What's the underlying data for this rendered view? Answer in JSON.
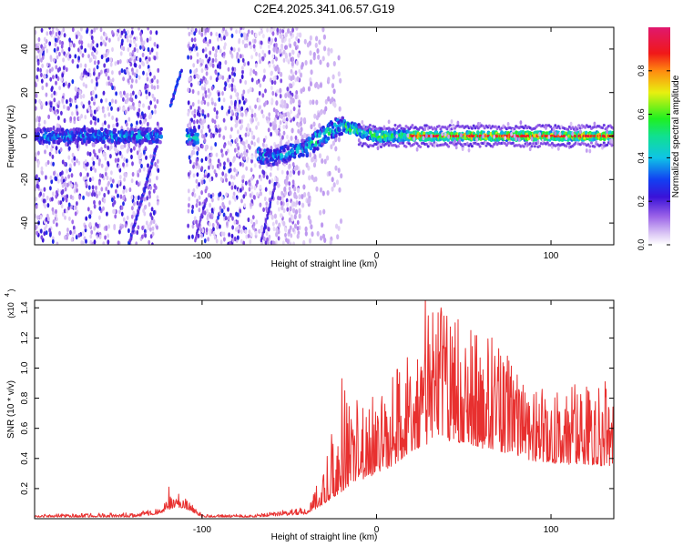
{
  "title": "C2E4.2025.341.06.57.G19",
  "chart_data": [
    {
      "type": "heatmap",
      "xlabel": "Height of straight line (km)",
      "ylabel": "Frequency (Hz)",
      "xlim": [
        -196,
        136
      ],
      "ylim": [
        -50,
        50
      ],
      "xticks": [
        -100,
        0,
        100
      ],
      "xtick_labels": [
        "-100",
        "0",
        "100"
      ],
      "yticks": [
        -40,
        -20,
        0,
        20,
        40
      ],
      "ytick_labels": [
        "-40",
        "-20",
        "0",
        "20",
        "40"
      ],
      "colorbar": {
        "label": "Normalized spectral amplitude",
        "range": [
          0,
          1
        ],
        "ticks": [
          0.0,
          0.2,
          0.4,
          0.6,
          0.8
        ],
        "tick_labels": [
          "0.0",
          "0.2",
          "0.4",
          "0.6",
          "0.8"
        ],
        "colormap": "rainbow (white-lavender-purple-blue-cyan-green-yellow-orange-red-magenta)"
      },
      "features": {
        "noise_region_x": [
          -196,
          -52
        ],
        "gap_x": [
          -125,
          -108
        ],
        "signal_track_points": [
          [
            -196,
            0
          ],
          [
            -150,
            0
          ],
          [
            -130,
            0
          ],
          [
            -108,
            0
          ],
          [
            -60,
            -10
          ],
          [
            -40,
            -5
          ],
          [
            -25,
            3
          ],
          [
            -20,
            5
          ],
          [
            0,
            0
          ],
          [
            136,
            0
          ]
        ],
        "peak_region_x": [
          20,
          136
        ]
      }
    },
    {
      "type": "line",
      "xlabel": "Height of straight line (km)",
      "ylabel": "SNR (10 * v/v)",
      "y_multiplier_label": "(x10",
      "y_multiplier_exponent": "4",
      "xlim": [
        -196,
        136
      ],
      "ylim": [
        0,
        1.45
      ],
      "xticks": [
        -100,
        0,
        100
      ],
      "xtick_labels": [
        "-100",
        "0",
        "100"
      ],
      "yticks": [
        0.2,
        0.4,
        0.6,
        0.8,
        1.0,
        1.2,
        1.4
      ],
      "ytick_labels": [
        "0.2",
        "0.4",
        "0.6",
        "0.8",
        "1.0",
        "1.2",
        "1.4"
      ],
      "series": [
        {
          "color": "#e8302f",
          "envelope": {
            "x": [
              -196,
              -140,
              -125,
              -115,
              -108,
              -100,
              -70,
              -40,
              -30,
              -20,
              -10,
              0,
              10,
              20,
              30,
              40,
              50,
              60,
              70,
              80,
              90,
              100,
              110,
              120,
              130,
              136
            ],
            "base": [
              0.01,
              0.01,
              0.03,
              0.08,
              0.06,
              0.01,
              0.01,
              0.03,
              0.1,
              0.18,
              0.25,
              0.3,
              0.35,
              0.45,
              0.5,
              0.52,
              0.5,
              0.47,
              0.45,
              0.42,
              0.38,
              0.37,
              0.36,
              0.36,
              0.35,
              0.35
            ],
            "peak": [
              0.03,
              0.04,
              0.07,
              0.18,
              0.12,
              0.03,
              0.03,
              0.08,
              0.35,
              0.92,
              0.88,
              0.8,
              0.95,
              1.22,
              1.45,
              1.4,
              1.3,
              1.25,
              1.15,
              0.98,
              0.9,
              0.85,
              0.88,
              0.92,
              0.9,
              0.88
            ]
          },
          "highlights": [
            [
              -119,
              0.21
            ],
            [
              -20,
              0.93
            ],
            [
              28,
              1.48
            ],
            [
              37,
              1.4
            ],
            [
              45,
              1.3
            ],
            [
              54,
              1.25
            ],
            [
              66,
              1.2
            ],
            [
              75,
              1.08
            ],
            [
              131,
              0.91
            ]
          ]
        }
      ]
    }
  ]
}
